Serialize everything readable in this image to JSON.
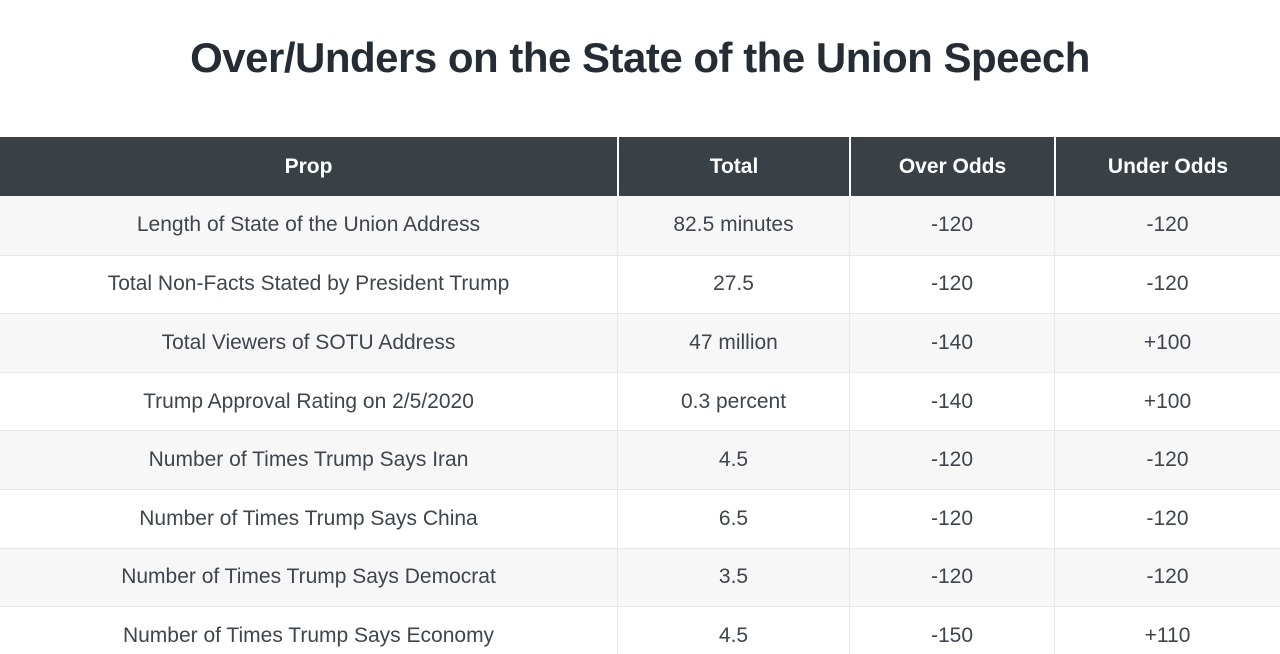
{
  "page": {
    "title": "Over/Unders on the State of the Union Speech"
  },
  "chart_data": {
    "type": "table",
    "title": "Over/Unders on the State of the Union Speech",
    "columns": [
      "Prop",
      "Total",
      "Over Odds",
      "Under Odds"
    ],
    "rows": [
      [
        "Length of State of the Union Address",
        "82.5 minutes",
        "-120",
        "-120"
      ],
      [
        "Total Non-Facts Stated by President Trump",
        "27.5",
        "-120",
        "-120"
      ],
      [
        "Total Viewers of SOTU Address",
        "47 million",
        "-140",
        "+100"
      ],
      [
        "Trump Approval Rating on 2/5/2020",
        "0.3 percent",
        "-140",
        "+100"
      ],
      [
        "Number of Times Trump Says Iran",
        "4.5",
        "-120",
        "-120"
      ],
      [
        "Number of Times Trump Says China",
        "6.5",
        "-120",
        "-120"
      ],
      [
        "Number of Times Trump Says Democrat",
        "3.5",
        "-120",
        "-120"
      ],
      [
        "Number of Times Trump Says Economy",
        "4.5",
        "-150",
        "+110"
      ]
    ],
    "layout": {
      "alignment": "center",
      "striping": "odd-rows-shaded",
      "last_row_clipped": true,
      "header_bg": "#394147",
      "header_text_color": "#ffffff",
      "row_alt_bg": "#f7f7f8",
      "row_bg": "#ffffff",
      "body_text_color": "#3e454c",
      "divider_color": "#e7e8e9",
      "title_color": "#262c34"
    }
  }
}
